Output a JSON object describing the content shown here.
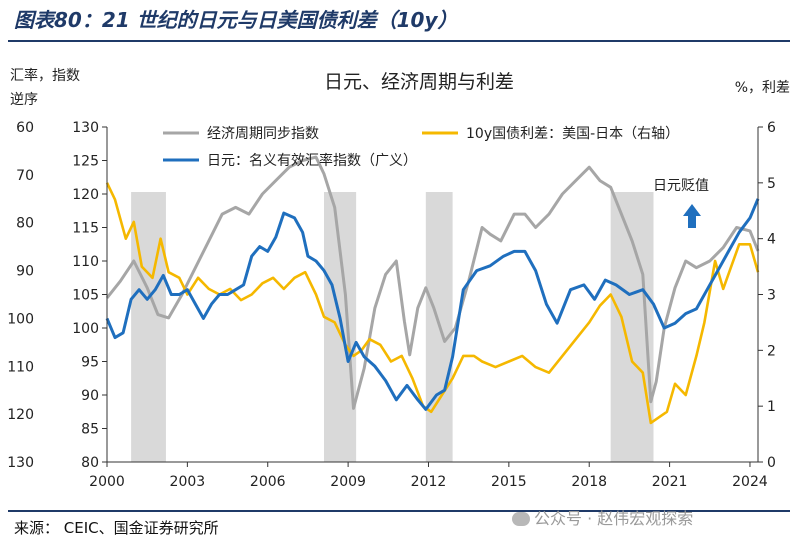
{
  "figure": {
    "title": "图表80：21 世纪的日元与日美国债利差（10y）",
    "source": "来源： CEIC、国金证券研究所",
    "watermark": "公众号 · 赵伟宏观探索"
  },
  "chart_data": {
    "type": "line",
    "title": "日元、经济周期与利差",
    "left_axis_label": "汇率，指数\n逆序",
    "right_axis_label": "%，利差",
    "annotation": "日元贬值",
    "colors": {
      "cycle": "#a6a6a6",
      "spread": "#f5b800",
      "fx": "#1f6fbe",
      "recession": "#d9d9d9",
      "arrow": "#1f6fbe"
    },
    "axes": {
      "x": {
        "range": [
          2000,
          2024.3
        ],
        "ticks": [
          2000,
          2003,
          2006,
          2009,
          2012,
          2015,
          2018,
          2021,
          2024
        ]
      },
      "fx_inverted": {
        "range": [
          60,
          130
        ],
        "ticks": [
          60,
          70,
          80,
          90,
          100,
          110,
          120,
          130
        ],
        "inverted": true
      },
      "cycle": {
        "range": [
          80,
          130
        ],
        "ticks": [
          130,
          125,
          120,
          115,
          110,
          105,
          100,
          95,
          90,
          85,
          80
        ]
      },
      "spread": {
        "range": [
          0,
          6
        ],
        "ticks": [
          0,
          1,
          2,
          3,
          4,
          5,
          6
        ]
      }
    },
    "recession_bands": [
      [
        2000.9,
        2002.2
      ],
      [
        2008.1,
        2009.3
      ],
      [
        2011.9,
        2012.9
      ],
      [
        2018.8,
        2020.4
      ]
    ],
    "series": [
      {
        "name": "经济周期同步指数",
        "axis": "cycle",
        "x": [
          2000.0,
          2000.5,
          2001.0,
          2001.5,
          2001.9,
          2002.3,
          2002.8,
          2003.3,
          2003.8,
          2004.3,
          2004.8,
          2005.3,
          2005.8,
          2006.3,
          2006.8,
          2007.3,
          2007.8,
          2008.1,
          2008.5,
          2008.9,
          2009.2,
          2009.6,
          2010.0,
          2010.4,
          2010.8,
          2011.1,
          2011.3,
          2011.6,
          2011.9,
          2012.2,
          2012.6,
          2013.0,
          2013.5,
          2014.0,
          2014.3,
          2014.7,
          2015.2,
          2015.6,
          2016.0,
          2016.5,
          2017.0,
          2017.5,
          2018.0,
          2018.4,
          2018.8,
          2019.2,
          2019.6,
          2020.0,
          2020.3,
          2020.5,
          2020.8,
          2021.2,
          2021.6,
          2022.0,
          2022.5,
          2023.0,
          2023.5,
          2024.0,
          2024.3
        ],
        "values": [
          104.5,
          107,
          110,
          106,
          102,
          101.5,
          105,
          109,
          113,
          117,
          118,
          117,
          120,
          122,
          124,
          125,
          125.5,
          123,
          118,
          105,
          88,
          94,
          103,
          108,
          110,
          101,
          96,
          103,
          106,
          103,
          98,
          100,
          107,
          115,
          114,
          113,
          117,
          117,
          115,
          117,
          120,
          122,
          124,
          122,
          121,
          117,
          113,
          108,
          89,
          92,
          100,
          106,
          110,
          109,
          110,
          112,
          115,
          114.5,
          111.5
        ]
      },
      {
        "name": "10y国债利差：美国-日本（右轴）",
        "axis": "spread",
        "x": [
          2000.0,
          2000.3,
          2000.7,
          2001.0,
          2001.3,
          2001.7,
          2002.0,
          2002.3,
          2002.7,
          2003.0,
          2003.4,
          2003.8,
          2004.2,
          2004.6,
          2005.0,
          2005.4,
          2005.8,
          2006.2,
          2006.6,
          2007.0,
          2007.4,
          2007.8,
          2008.1,
          2008.5,
          2008.9,
          2009.2,
          2009.5,
          2009.8,
          2010.2,
          2010.6,
          2011.0,
          2011.4,
          2011.8,
          2012.1,
          2012.5,
          2012.9,
          2013.3,
          2013.7,
          2014.0,
          2014.5,
          2015.0,
          2015.5,
          2016.0,
          2016.5,
          2017.0,
          2017.5,
          2018.0,
          2018.4,
          2018.8,
          2019.2,
          2019.6,
          2020.0,
          2020.3,
          2020.6,
          2020.9,
          2021.2,
          2021.6,
          2022.0,
          2022.3,
          2022.7,
          2023.0,
          2023.3,
          2023.6,
          2024.0,
          2024.3
        ],
        "values": [
          5.0,
          4.7,
          4.0,
          4.3,
          3.5,
          3.3,
          4.0,
          3.4,
          3.3,
          3.0,
          3.3,
          3.1,
          3.0,
          3.1,
          2.9,
          3.0,
          3.2,
          3.3,
          3.1,
          3.3,
          3.4,
          3.0,
          2.6,
          2.5,
          2.1,
          1.9,
          2.0,
          2.2,
          2.1,
          1.8,
          1.9,
          1.5,
          1.0,
          0.9,
          1.2,
          1.5,
          1.9,
          1.9,
          1.8,
          1.7,
          1.8,
          1.9,
          1.7,
          1.6,
          1.9,
          2.2,
          2.5,
          2.8,
          3.0,
          2.6,
          1.8,
          1.6,
          0.7,
          0.8,
          0.9,
          1.4,
          1.2,
          1.9,
          2.5,
          3.6,
          3.1,
          3.5,
          3.9,
          3.9,
          3.4
        ]
      },
      {
        "name": "日元：名义有效汇率指数（广义）",
        "axis": "fx_inverted",
        "x": [
          2000.0,
          2000.3,
          2000.6,
          2000.9,
          2001.2,
          2001.5,
          2001.8,
          2002.1,
          2002.4,
          2002.7,
          2003.0,
          2003.3,
          2003.6,
          2003.9,
          2004.2,
          2004.5,
          2004.8,
          2005.1,
          2005.4,
          2005.7,
          2006.0,
          2006.3,
          2006.6,
          2007.0,
          2007.3,
          2007.5,
          2007.8,
          2008.1,
          2008.4,
          2008.7,
          2009.0,
          2009.3,
          2009.6,
          2010.0,
          2010.4,
          2010.8,
          2011.2,
          2011.6,
          2011.9,
          2012.3,
          2012.6,
          2012.9,
          2013.3,
          2013.8,
          2014.3,
          2014.8,
          2015.2,
          2015.6,
          2016.0,
          2016.4,
          2016.8,
          2017.3,
          2017.8,
          2018.2,
          2018.6,
          2019.0,
          2019.5,
          2020.0,
          2020.4,
          2020.8,
          2021.2,
          2021.6,
          2022.0,
          2022.4,
          2022.8,
          2023.2,
          2023.6,
          2024.0,
          2024.3
        ],
        "values": [
          100,
          104,
          103,
          96,
          94,
          96,
          94,
          91,
          95,
          95,
          94,
          97,
          100,
          97,
          95,
          95,
          94,
          93,
          87,
          85,
          86,
          83,
          78,
          79,
          82,
          87,
          88,
          90,
          93,
          100,
          109,
          105,
          108,
          110,
          113,
          117,
          114,
          117,
          119,
          116,
          115,
          108,
          94,
          90,
          89,
          87,
          86,
          86,
          90,
          97,
          101,
          94,
          93,
          96,
          92,
          93,
          95,
          94,
          97,
          102,
          101,
          99,
          98,
          94,
          90,
          86,
          82,
          79,
          75
        ]
      }
    ]
  }
}
